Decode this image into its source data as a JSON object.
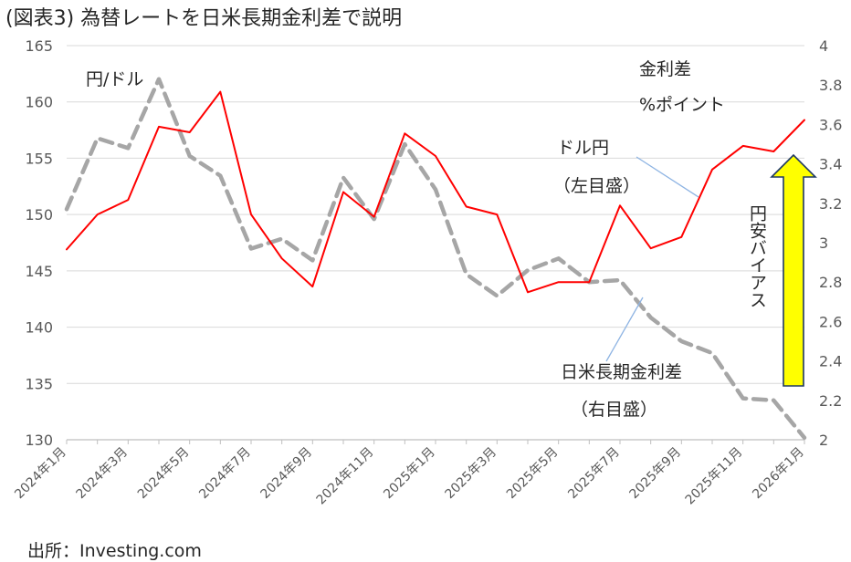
{
  "title": "(図表3) 為替レートを日米長期金利差で説明",
  "source": "出所：Investing.com",
  "chart_data": {
    "type": "line",
    "title": "(図表3) 為替レートを日米長期金利差で説明",
    "categories": [
      "2024年1月",
      "2024年2月",
      "2024年3月",
      "2024年4月",
      "2024年5月",
      "2024年6月",
      "2024年7月",
      "2024年8月",
      "2024年9月",
      "2024年10月",
      "2024年11月",
      "2024年12月",
      "2025年1月",
      "2025年2月",
      "2025年3月",
      "2025年4月",
      "2025年5月",
      "2025年6月",
      "2025年7月",
      "2025年8月",
      "2025年9月",
      "2025年10月",
      "2025年11月",
      "2025年12月",
      "2026年1月"
    ],
    "x_tick_labels": [
      "2024年1月",
      "2024年3月",
      "2024年5月",
      "2024年7月",
      "2024年9月",
      "2024年11月",
      "2025年1月",
      "2025年3月",
      "2025年5月",
      "2025年7月",
      "2025年9月",
      "2025年11月",
      "2026年1月"
    ],
    "left_axis": {
      "label": "円/ドル",
      "ylim": [
        130,
        165
      ],
      "ticks": [
        130,
        135,
        140,
        145,
        150,
        155,
        160,
        165
      ]
    },
    "right_axis": {
      "label_line1": "金利差",
      "label_line2": "%ポイント",
      "ylim": [
        2,
        4
      ],
      "ticks": [
        "2",
        "2.2",
        "2.4",
        "2.6",
        "2.8",
        "3",
        "3.2",
        "3.4",
        "3.6",
        "3.8",
        "4"
      ]
    },
    "series": [
      {
        "name": "ドル円",
        "axis": "left",
        "color": "#ff0000",
        "style": "solid",
        "values": [
          146.9,
          150.0,
          151.3,
          157.8,
          157.3,
          160.9,
          150.0,
          146.1,
          143.6,
          152.0,
          149.8,
          157.2,
          155.2,
          150.7,
          150.0,
          143.1,
          144.0,
          144.0,
          150.8,
          147.0,
          148.0,
          154.0,
          156.1,
          155.6,
          158.4
        ]
      },
      {
        "name": "日米長期金利差",
        "axis": "right",
        "color": "#a6a6a6",
        "style": "dashed",
        "values": [
          3.17,
          3.53,
          3.48,
          3.83,
          3.44,
          3.34,
          2.97,
          3.02,
          2.91,
          3.33,
          3.12,
          3.5,
          3.27,
          2.84,
          2.73,
          2.86,
          2.92,
          2.8,
          2.81,
          2.62,
          2.5,
          2.44,
          2.21,
          2.2,
          2.01
        ]
      }
    ],
    "annotations": {
      "usd_jpy_line1": "ドル円",
      "usd_jpy_line2": "（左目盛）",
      "spread_line1": "日米長期金利差",
      "spread_line2": "（右目盛）",
      "arrow_text": "円安バイアス",
      "arrow_color": "#ffff00"
    },
    "grid": true
  }
}
